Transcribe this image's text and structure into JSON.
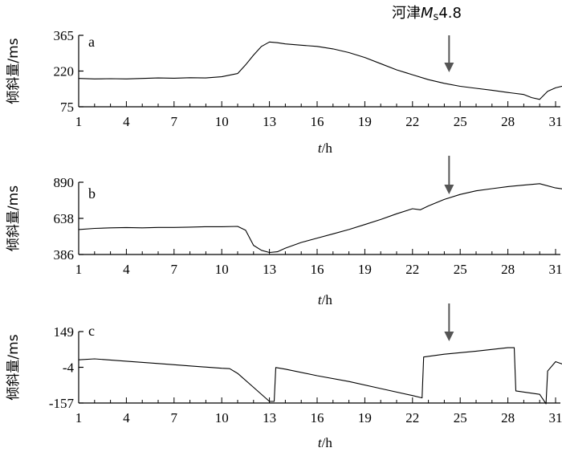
{
  "colors": {
    "line": "#000000",
    "arrow": "#555555"
  },
  "event_label": {
    "prefix": "河津",
    "mag_main": "M",
    "mag_sub": "s",
    "mag_value": "4.8"
  },
  "chart_data": [
    {
      "panel": "a",
      "type": "line",
      "ylabel": "倾斜量/ms",
      "xlabel_var": "t",
      "xlabel_unit": "/h",
      "ylim": [
        75,
        365
      ],
      "xlim": [
        1,
        32
      ],
      "y_ticks": [
        365,
        220,
        75
      ],
      "y_tick_labels": [
        "365",
        "220",
        "75"
      ],
      "x_ticks": [
        1,
        4,
        7,
        10,
        13,
        16,
        19,
        22,
        25,
        28,
        31
      ],
      "x_tick_labels": [
        "1",
        "4",
        "7",
        "10",
        "13",
        "16",
        "19",
        "22",
        "25",
        "28",
        "31"
      ],
      "event_x": 24.3,
      "series": [
        {
          "x": [
            1,
            2,
            3,
            4,
            5,
            6,
            7,
            8,
            9,
            10,
            11,
            11.5,
            12,
            12.5,
            13,
            13.5,
            14,
            15,
            16,
            17,
            18,
            19,
            20,
            21,
            22,
            23,
            24,
            25,
            26,
            27,
            28,
            29,
            29.5,
            30,
            30.5,
            31,
            32
          ],
          "y": [
            190,
            188,
            189,
            188,
            190,
            192,
            191,
            193,
            192,
            197,
            210,
            245,
            285,
            320,
            338,
            335,
            330,
            325,
            320,
            310,
            295,
            275,
            250,
            225,
            205,
            185,
            170,
            158,
            150,
            142,
            133,
            125,
            112,
            105,
            138,
            152,
            168
          ]
        }
      ]
    },
    {
      "panel": "b",
      "type": "line",
      "ylabel": "倾斜量/ms",
      "xlabel_var": "t",
      "xlabel_unit": "/h",
      "ylim": [
        386,
        890
      ],
      "xlim": [
        1,
        32
      ],
      "y_ticks": [
        890,
        638,
        386
      ],
      "y_tick_labels": [
        "890",
        "638",
        "386"
      ],
      "x_ticks": [
        1,
        4,
        7,
        10,
        13,
        16,
        19,
        22,
        25,
        28,
        31
      ],
      "x_tick_labels": [
        "1",
        "4",
        "7",
        "10",
        "13",
        "16",
        "19",
        "22",
        "25",
        "28",
        "31"
      ],
      "event_x": 24.3,
      "series": [
        {
          "x": [
            1,
            2,
            3,
            4,
            5,
            6,
            7,
            8,
            9,
            10,
            11,
            11.5,
            12,
            12.5,
            13,
            13.5,
            14,
            15,
            16,
            17,
            18,
            19,
            20,
            21,
            22,
            22.5,
            23,
            24,
            25,
            26,
            27,
            28,
            29,
            30,
            31,
            32
          ],
          "y": [
            560,
            568,
            572,
            574,
            572,
            575,
            575,
            577,
            580,
            580,
            582,
            555,
            450,
            415,
            400,
            405,
            430,
            470,
            500,
            530,
            560,
            595,
            630,
            670,
            705,
            698,
            725,
            770,
            805,
            830,
            845,
            860,
            870,
            880,
            850,
            835
          ]
        }
      ]
    },
    {
      "panel": "c",
      "type": "line",
      "ylabel": "倾斜量/ms",
      "xlabel_var": "t",
      "xlabel_unit": "/h",
      "ylim": [
        -157,
        149
      ],
      "xlim": [
        1,
        32
      ],
      "y_ticks": [
        149,
        -4,
        -157
      ],
      "y_tick_labels": [
        "149",
        "-4",
        "-157"
      ],
      "x_ticks": [
        1,
        4,
        7,
        10,
        13,
        16,
        19,
        22,
        25,
        28,
        31
      ],
      "x_tick_labels": [
        "1",
        "4",
        "7",
        "10",
        "13",
        "16",
        "19",
        "22",
        "25",
        "28",
        "31"
      ],
      "event_x": 24.3,
      "series": [
        {
          "x": [
            1,
            2,
            4,
            6,
            8,
            10,
            10.5,
            11,
            12,
            13,
            13.3,
            13.4,
            14,
            16,
            18,
            20,
            22,
            22.6,
            22.7,
            24,
            26,
            28,
            28.4,
            28.5,
            30,
            30.4,
            30.5,
            31,
            32
          ],
          "y": [
            28,
            32,
            22,
            12,
            2,
            -8,
            -10,
            -30,
            -90,
            -150,
            -150,
            -5,
            -12,
            -40,
            -65,
            -95,
            -125,
            -135,
            40,
            52,
            65,
            80,
            80,
            -105,
            -120,
            -160,
            -20,
            20,
            -4
          ]
        }
      ]
    }
  ]
}
